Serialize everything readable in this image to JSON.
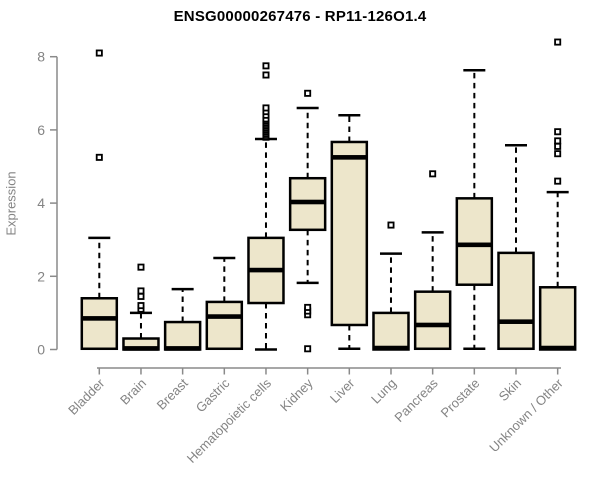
{
  "chart_data": {
    "type": "boxplot",
    "title": "ENSG00000267476 - RP11-126O1.4",
    "ylabel": "Expression",
    "ylim": [
      0,
      8
    ],
    "yticks": [
      0,
      2,
      4,
      6,
      8
    ],
    "grid": false,
    "legend": false,
    "colors": {
      "box_fill": "#ede6cb",
      "box_border": "#000000",
      "median": "#000000",
      "whisker": "#000000",
      "outlier_fill": "#ffffff",
      "axis_line": "#8a8a8a",
      "axis_text": "#848484",
      "title_text": "#000000"
    },
    "categories": [
      "Bladder",
      "Brain",
      "Breast",
      "Gastric",
      "Hematopoietic cells",
      "Kidney",
      "Liver",
      "Lung",
      "Pancreas",
      "Prostate",
      "Skin",
      "Unknown / Other"
    ],
    "boxes": [
      {
        "category": "Bladder",
        "whisker_low": 0.02,
        "q1": 0.02,
        "median": 0.85,
        "q3": 1.4,
        "whisker_high": 3.05,
        "outliers": [
          5.25,
          8.1
        ]
      },
      {
        "category": "Brain",
        "whisker_low": 0.0,
        "q1": 0.0,
        "median": 0.03,
        "q3": 0.3,
        "whisker_high": 1.0,
        "outliers": [
          1.1,
          1.2,
          1.45,
          1.6,
          2.25
        ]
      },
      {
        "category": "Breast",
        "whisker_low": 0.0,
        "q1": 0.0,
        "median": 0.03,
        "q3": 0.75,
        "whisker_high": 1.65,
        "outliers": []
      },
      {
        "category": "Gastric",
        "whisker_low": 0.02,
        "q1": 0.02,
        "median": 0.9,
        "q3": 1.3,
        "whisker_high": 2.5,
        "outliers": []
      },
      {
        "category": "Hematopoietic cells",
        "whisker_low": 0.0,
        "q1": 1.27,
        "median": 2.17,
        "q3": 3.05,
        "whisker_high": 5.75,
        "outliers": [
          5.8,
          5.85,
          5.9,
          5.95,
          6.0,
          6.05,
          6.1,
          6.15,
          6.2,
          6.25,
          6.3,
          6.4,
          6.5,
          6.6,
          7.5,
          7.75
        ]
      },
      {
        "category": "Kidney",
        "whisker_low": 1.82,
        "q1": 3.27,
        "median": 4.03,
        "q3": 4.68,
        "whisker_high": 6.6,
        "outliers": [
          0.02,
          0.95,
          1.05,
          1.15,
          7.0
        ]
      },
      {
        "category": "Liver",
        "whisker_low": 0.02,
        "q1": 0.67,
        "median": 5.25,
        "q3": 5.67,
        "whisker_high": 6.4,
        "outliers": []
      },
      {
        "category": "Lung",
        "whisker_low": 0.0,
        "q1": 0.0,
        "median": 0.04,
        "q3": 1.0,
        "whisker_high": 2.62,
        "outliers": [
          3.4
        ]
      },
      {
        "category": "Pancreas",
        "whisker_low": 0.02,
        "q1": 0.02,
        "median": 0.67,
        "q3": 1.58,
        "whisker_high": 3.2,
        "outliers": [
          4.8
        ]
      },
      {
        "category": "Prostate",
        "whisker_low": 0.02,
        "q1": 1.77,
        "median": 2.86,
        "q3": 4.13,
        "whisker_high": 7.63,
        "outliers": []
      },
      {
        "category": "Skin",
        "whisker_low": 0.02,
        "q1": 0.02,
        "median": 0.76,
        "q3": 2.64,
        "whisker_high": 5.58,
        "outliers": []
      },
      {
        "category": "Unknown / Other",
        "whisker_low": 0.0,
        "q1": 0.0,
        "median": 0.04,
        "q3": 1.7,
        "whisker_high": 4.3,
        "outliers": [
          4.6,
          5.35,
          5.55,
          5.7,
          5.95,
          8.4
        ]
      }
    ]
  }
}
